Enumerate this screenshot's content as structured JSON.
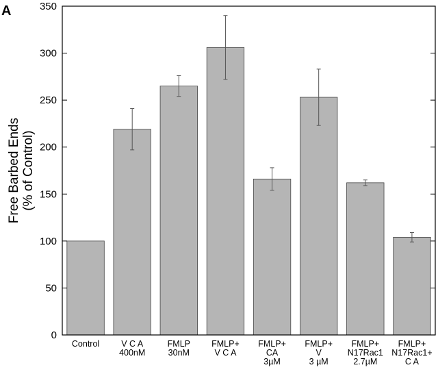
{
  "panel_label": "A",
  "chart_data": {
    "type": "bar",
    "title": "",
    "xlabel": "",
    "ylabel": [
      "Free Barbed Ends",
      "(% of Control)"
    ],
    "ylim": [
      0,
      350
    ],
    "yticks": [
      0,
      50,
      100,
      150,
      200,
      250,
      300,
      350
    ],
    "grid": false,
    "legend": "none",
    "bar_color": "#b5b5b5",
    "categories": [
      [
        "Control"
      ],
      [
        "V C A",
        "400nM"
      ],
      [
        "FMLP",
        "30nM"
      ],
      [
        "FMLP+",
        "V C A"
      ],
      [
        "FMLP+",
        "CA",
        "3µM"
      ],
      [
        "FMLP+",
        "V",
        "3 µM"
      ],
      [
        "FMLP+",
        "N17Rac1",
        "2.7µM"
      ],
      [
        "FMLP+",
        "N17Rac1+",
        "C A"
      ]
    ],
    "values": [
      100,
      219,
      265,
      306,
      166,
      253,
      162,
      104
    ],
    "errors": [
      0,
      22,
      11,
      34,
      12,
      30,
      3,
      5
    ]
  }
}
